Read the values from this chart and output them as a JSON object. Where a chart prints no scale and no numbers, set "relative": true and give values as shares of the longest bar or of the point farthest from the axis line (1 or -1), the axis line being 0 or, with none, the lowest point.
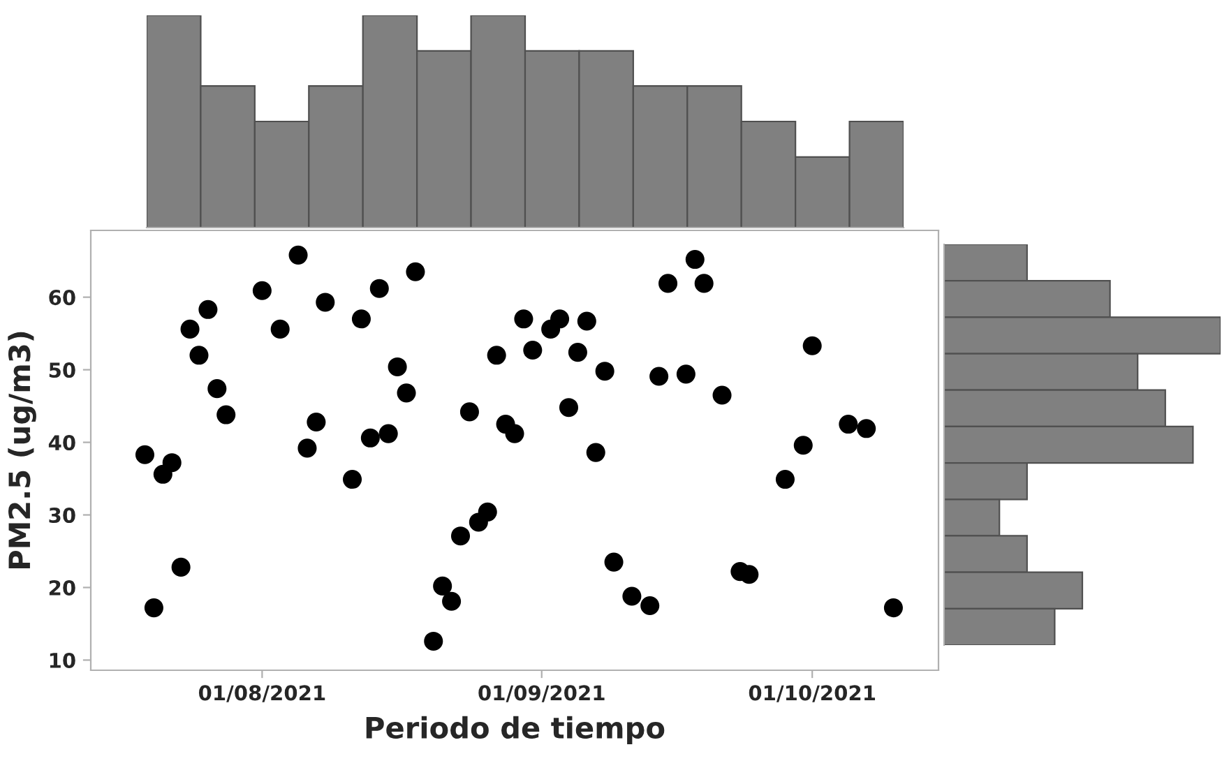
{
  "chart_data": [
    {
      "type": "bar",
      "relative": true,
      "color": "#808080",
      "categories": [
        null,
        null,
        null,
        null,
        null,
        null,
        null,
        null,
        null,
        null,
        null,
        null,
        null,
        null
      ],
      "values": [
        1,
        0.667,
        0.5,
        0.667,
        1,
        0.833,
        1,
        0.833,
        0.833,
        0.667,
        0.667,
        0.5,
        0.333,
        0.5
      ]
    },
    {
      "type": "scatter",
      "marker": "circle",
      "xlabel": "Periodo de tiempo",
      "ylabel": "PM2.5 (ug/m3)",
      "xlim": [
        "2021-07-13",
        "2021-10-15"
      ],
      "ylim": [
        8.6,
        69.2
      ],
      "xticks": [
        {
          "value": "2021-08-01",
          "label": "01/08/2021"
        },
        {
          "value": "2021-09-01",
          "label": "01/09/2021"
        },
        {
          "value": "2021-10-01",
          "label": "01/10/2021"
        }
      ],
      "yticks": [
        10,
        20,
        30,
        40,
        50,
        60
      ],
      "series": [
        {
          "color": "#000000",
          "x": [
            "2021-07-19",
            "2021-07-20",
            "2021-07-21",
            "2021-07-22",
            "2021-07-23",
            "2021-07-24",
            "2021-07-25",
            "2021-07-26",
            "2021-07-27",
            "2021-07-28",
            "2021-08-01",
            "2021-08-03",
            "2021-08-05",
            "2021-08-06",
            "2021-08-07",
            "2021-08-08",
            "2021-08-11",
            "2021-08-12",
            "2021-08-13",
            "2021-08-14",
            "2021-08-15",
            "2021-08-16",
            "2021-08-17",
            "2021-08-18",
            "2021-08-20",
            "2021-08-21",
            "2021-08-22",
            "2021-08-23",
            "2021-08-24",
            "2021-08-25",
            "2021-08-26",
            "2021-08-27",
            "2021-08-28",
            "2021-08-29",
            "2021-08-30",
            "2021-08-31",
            "2021-09-02",
            "2021-09-03",
            "2021-09-04",
            "2021-09-05",
            "2021-09-06",
            "2021-09-07",
            "2021-09-08",
            "2021-09-09",
            "2021-09-11",
            "2021-09-13",
            "2021-09-14",
            "2021-09-15",
            "2021-09-17",
            "2021-09-18",
            "2021-09-19",
            "2021-09-21",
            "2021-09-23",
            "2021-09-24",
            "2021-09-28",
            "2021-09-30",
            "2021-10-01",
            "2021-10-05",
            "2021-10-07",
            "2021-10-10"
          ],
          "values": [
            38.3,
            17.2,
            35.6,
            37.2,
            22.8,
            55.6,
            52.0,
            58.3,
            47.4,
            43.8,
            60.9,
            55.6,
            65.8,
            39.2,
            42.8,
            59.3,
            34.9,
            57.0,
            40.6,
            61.2,
            41.2,
            50.4,
            46.8,
            63.5,
            12.6,
            20.2,
            18.1,
            27.1,
            44.2,
            29.0,
            30.4,
            52.0,
            42.5,
            41.2,
            57.0,
            52.7,
            55.6,
            57.0,
            44.8,
            52.4,
            56.7,
            38.6,
            49.8,
            23.5,
            18.8,
            17.5,
            49.1,
            61.9,
            49.4,
            65.2,
            61.9,
            46.5,
            22.2,
            21.8,
            34.9,
            39.6,
            53.3,
            42.5,
            41.9,
            17.2
          ]
        }
      ]
    },
    {
      "type": "bar",
      "relative": true,
      "orientation": "horizontal",
      "color": "#808080",
      "categories": [
        null,
        null,
        null,
        null,
        null,
        null,
        null,
        null,
        null,
        null,
        null
      ],
      "values": [
        0.3,
        0.6,
        1,
        0.7,
        0.8,
        0.9,
        0.3,
        0.2,
        0.3,
        0.5,
        0.4
      ]
    }
  ]
}
